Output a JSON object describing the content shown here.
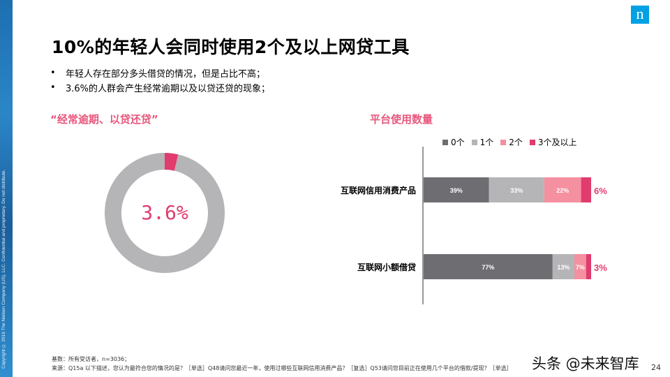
{
  "copyright": "Copyright © 2019 The Nielsen Company (US), LLC. Confidential and proprietary. Do not distribute.",
  "logo_letter": "n",
  "title": "10%的年轻人会同时使用2个及以上网贷工具",
  "bullets": [
    "年轻人存在部分多头借贷的情况，但是占比不高；",
    "3.6%的人群会产生经常逾期以及以贷还贷的现象；"
  ],
  "bullet_char": "•",
  "left_section_title": "“经常逾期、以贷还贷”",
  "right_section_title": "平台使用数量",
  "colors": {
    "pink_text": "#e8577d",
    "dark_gray": "#6d6d72",
    "light_gray": "#b5b5b8",
    "light_pink": "#f4909f",
    "magenta": "#e03c6e"
  },
  "chart_data": [
    {
      "type": "pie",
      "variant": "donut",
      "center_label": "3.6%",
      "slices": [
        {
          "value": 3.6,
          "color": "#e03c6e"
        },
        {
          "value": 96.4,
          "color": "#b5b5b8"
        }
      ]
    },
    {
      "type": "bar",
      "orientation": "horizontal",
      "stacked": true,
      "unit": "%",
      "legend_position": "top",
      "categories": [
        "互联网信用消费产品",
        "互联网小额借贷"
      ],
      "series": [
        {
          "name": "0个",
          "color": "#6d6d72",
          "values": [
            39,
            77
          ],
          "labels": [
            "39%",
            "77%"
          ]
        },
        {
          "name": "1个",
          "color": "#b5b5b8",
          "values": [
            33,
            13
          ],
          "labels": [
            "33%",
            "13%"
          ]
        },
        {
          "name": "2个",
          "color": "#f4909f",
          "values": [
            22,
            7
          ],
          "labels": [
            "22%",
            "7%"
          ]
        },
        {
          "name": "3个及以上",
          "color": "#e03c6e",
          "values": [
            6,
            3
          ],
          "labels": [
            "6%",
            "3%"
          ]
        }
      ]
    }
  ],
  "footer": {
    "base": "基数：所有受访者，n=3036；",
    "source": "来源：Q15a 以下描述，您认为最符合您的情况的是？［单选］Q48请问您最近一年，使用过哪些互联网信用消费产品？［复选］Q53请问您目前正在使用几个平台的借款/提现？［单选］"
  },
  "watermark": "头条 @未来智库",
  "page_number": "24"
}
